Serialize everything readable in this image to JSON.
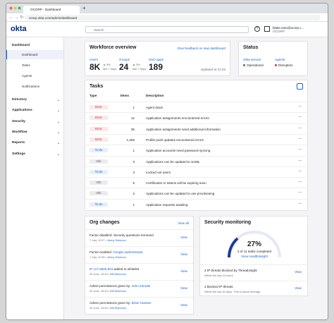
{
  "browser": {
    "tab": "OCORP - Dashboard",
    "url": "ocorp.okta.com/admin/dashboard"
  },
  "header": {
    "logo": "okta",
    "search": "Search",
    "user": "blake.soto@ocorp.c...",
    "org": "OCORP"
  },
  "sidebar": {
    "section": "Dashboard",
    "subitems": [
      "Dashboard",
      "Tasks",
      "Agents",
      "Notifications"
    ],
    "items": [
      "Directory",
      "Applications",
      "Security",
      "Workflow",
      "Reports",
      "Settings"
    ]
  },
  "workforce": {
    "title": "Workforce overview",
    "feedback": "Give feedback on new dashboard",
    "stats": [
      {
        "label": "Users",
        "value": "8K",
        "change": "5%",
        "period": "last 7 days"
      },
      {
        "label": "Groups",
        "value": "24",
        "change": "3%",
        "period": "last 7 days"
      },
      {
        "label": "SSO apps",
        "value": "189"
      }
    ],
    "updated": "Updated at 21:03"
  },
  "status": {
    "title": "Status",
    "items": [
      {
        "label": "Okta service",
        "state": "Operational"
      },
      {
        "label": "Agents",
        "state": "Disruption"
      }
    ]
  },
  "tasks": {
    "title": "Tasks",
    "columns": [
      "Type",
      "Items",
      "Description"
    ],
    "rows": [
      [
        "Error",
        1,
        "Agent down"
      ],
      [
        "Error",
        12,
        "Application assignments encountered errors"
      ],
      [
        "Error",
        35,
        "Application assignments need additional information"
      ],
      [
        "Error",
        "1,266",
        "Profile push updates encountered errors"
      ],
      [
        "To-do",
        1,
        "Application accounts need password syncing"
      ],
      [
        "Info",
        3,
        "Applications can be updated to SAML"
      ],
      [
        "To-do",
        3,
        "Locked out users"
      ],
      [
        "Info",
        5,
        "Certificates or tokens will be expiring soon"
      ],
      [
        "Info",
        2,
        "Applications can be updated to use provisioning"
      ],
      [
        "To-do",
        1,
        "Application requests awaiting"
      ]
    ]
  },
  "org_changes": {
    "title": "Org changes",
    "view_all": "View all",
    "action": "View",
    "items": [
      {
        "text": "Factor disabled: Security questions removed",
        "date": "7 July, 11:57",
        "user": "Jenny Solomon"
      },
      {
        "text": "Factor enabled: ",
        "link": "Google authenticator",
        "date": "7 July, 11:56",
        "user": "Jenny Solomon"
      },
      {
        "link": "IP 117.5829.823",
        "text": " added to whitelist",
        "date": "29 June, 15:44",
        "user": "Bill Simmons"
      },
      {
        "text": "Admin permissions given by: ",
        "link": "John Intruder",
        "date": "29 June, 15:43",
        "user": "Bill Simmons"
      },
      {
        "text": "Admin permissions given by: ",
        "link": "Brian Hansen",
        "date": "29 June, 13:40",
        "user": "Bill Simmons"
      }
    ]
  },
  "security": {
    "title": "Security monitoring",
    "gauge": {
      "value": 27,
      "label": "27%"
    },
    "completed": "3 of 11 tasks completed",
    "link": "View Healthinsight",
    "action": "View",
    "items": [
      {
        "text": "4 IP threats blocked by ThreatInsight",
        "sub": "Within the last 24 hours"
      },
      {
        "text": "4 blocked IP threats",
        "sub": "Within the last 30 days. This is above average."
      }
    ]
  }
}
